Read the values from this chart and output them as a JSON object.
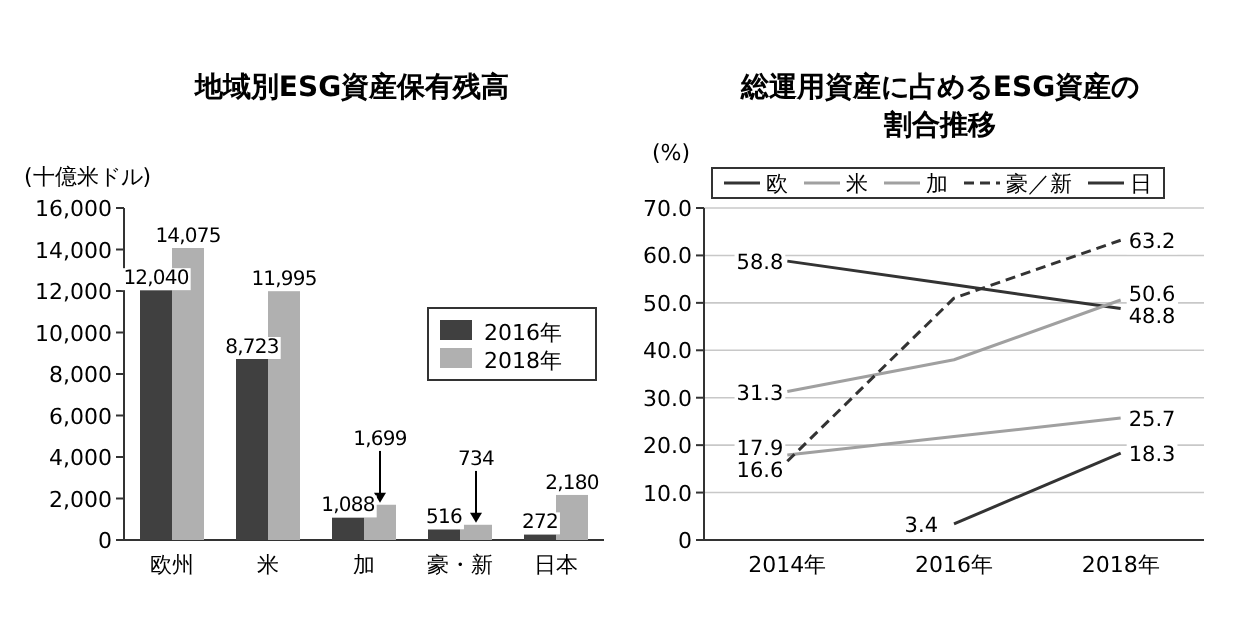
{
  "chart_data": [
    {
      "type": "bar",
      "title": "地域別ESG資産保有残高",
      "ylabel": "(十億米ドル)",
      "categories": [
        "欧州",
        "米",
        "加",
        "豪・新",
        "日本"
      ],
      "series": [
        {
          "name": "2016年",
          "color": "#404040",
          "values": [
            12040,
            8723,
            1088,
            516,
            272
          ],
          "value_labels": [
            "12,040",
            "8,723",
            "1,088",
            "516",
            "272"
          ]
        },
        {
          "name": "2018年",
          "color": "#b0b0b0",
          "values": [
            14075,
            11995,
            1699,
            734,
            2180
          ],
          "value_labels": [
            "14,075",
            "11,995",
            "1,699",
            "734",
            "2,180"
          ]
        }
      ],
      "ylim": [
        0,
        16000
      ],
      "yticks": [
        0,
        {
          "value": 2000,
          "label": "2,000"
        },
        {
          "value": 4000,
          "label": "4,000"
        },
        {
          "value": 6000,
          "label": "6,000"
        },
        {
          "value": 8000,
          "label": "8,000"
        },
        {
          "value": 10000,
          "label": "10,000"
        },
        {
          "value": 12000,
          "label": "12,000"
        },
        {
          "value": 14000,
          "label": "14,000"
        },
        {
          "value": 16000,
          "label": "16,000"
        }
      ],
      "legend": "top right",
      "grid": false
    },
    {
      "type": "line",
      "title": "総運用資産に占めるESG資産の割合推移",
      "ylabel": "(%)",
      "categories": [
        "2014年",
        "2016年",
        "2018年"
      ],
      "series": [
        {
          "name": "欧",
          "color": "#333333",
          "line_style": "solid",
          "values": [
            58.8,
            53.8,
            48.8
          ],
          "value_labels": [
            "58.8",
            null,
            "48.8"
          ]
        },
        {
          "name": "米",
          "color": "#a0a0a0",
          "line_style": "solid",
          "values": [
            17.9,
            21.8,
            25.7
          ],
          "value_labels": [
            "17.9",
            null,
            "25.7"
          ]
        },
        {
          "name": "加",
          "color": "#a0a0a0",
          "line_style": "solid",
          "values": [
            31.3,
            38,
            50.6
          ],
          "value_labels": [
            "31.3",
            null,
            "50.6"
          ]
        },
        {
          "name": "豪／新",
          "color": "#333333",
          "line_style": "dashed",
          "values": [
            16.6,
            51,
            63.2
          ],
          "value_labels": [
            "16.6",
            null,
            "63.2"
          ]
        },
        {
          "name": "日",
          "color": "#333333",
          "line_style": "solid",
          "values": [
            null,
            3.4,
            18.3
          ],
          "value_labels": [
            null,
            "3.4",
            "18.3"
          ]
        }
      ],
      "ylim": [
        0,
        70
      ],
      "yticks": [
        {
          "value": 0,
          "label": "0"
        },
        {
          "value": 10,
          "label": "10.0"
        },
        {
          "value": 20,
          "label": "20.0"
        },
        {
          "value": 30,
          "label": "30.0"
        },
        {
          "value": 40,
          "label": "40.0"
        },
        {
          "value": 50,
          "label": "50.0"
        },
        {
          "value": 60,
          "label": "60.0"
        },
        {
          "value": 70,
          "label": "70.0"
        }
      ],
      "legend": "top",
      "grid": "y",
      "marker": "none"
    }
  ]
}
